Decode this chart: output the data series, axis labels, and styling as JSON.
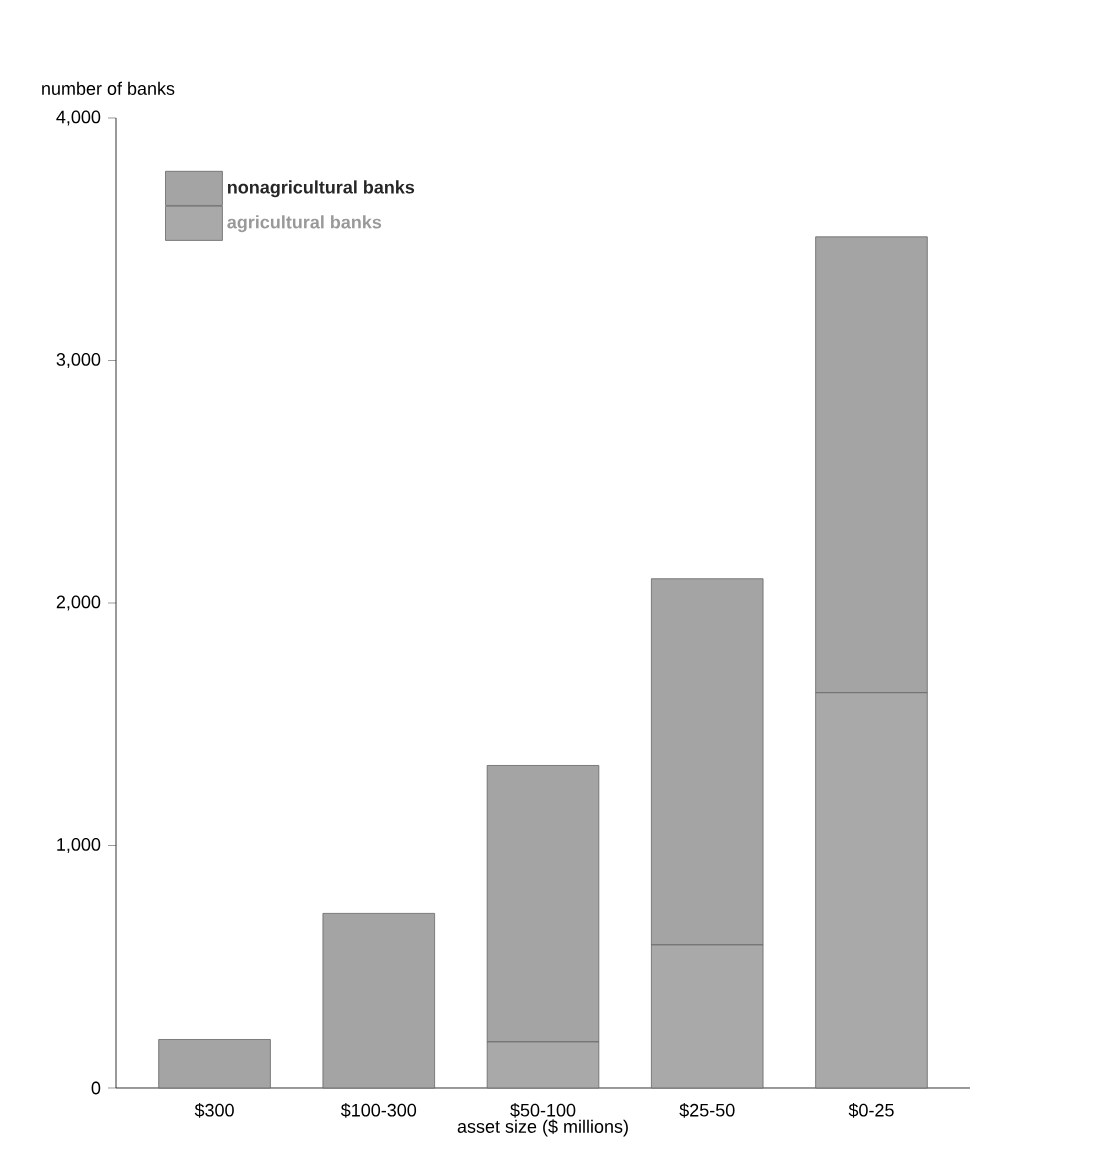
{
  "chart_data": {
    "type": "bar",
    "stacked": true,
    "ylabel": "number of banks",
    "xlabel": "asset size ($ millions)",
    "categories": [
      "$300",
      "$100-300",
      "$50-100",
      "$25-50",
      "$0-25"
    ],
    "series": [
      {
        "name": "agricultural banks",
        "color": "#a9a9a9",
        "values": [
          0,
          0,
          190,
          590,
          1630
        ]
      },
      {
        "name": "nonagricultural banks",
        "color": "#a4a4a4",
        "values": [
          200,
          720,
          1140,
          1510,
          1880
        ]
      }
    ],
    "ylim": [
      0,
      4000
    ],
    "yticks": [
      0,
      {
        "value": 1000,
        "label": "1,000"
      },
      {
        "value": 2000,
        "label": "2,000"
      },
      {
        "value": 3000,
        "label": "3,000"
      },
      {
        "value": 4000,
        "label": "4,000"
      }
    ],
    "legend": "top left",
    "grid": false
  }
}
